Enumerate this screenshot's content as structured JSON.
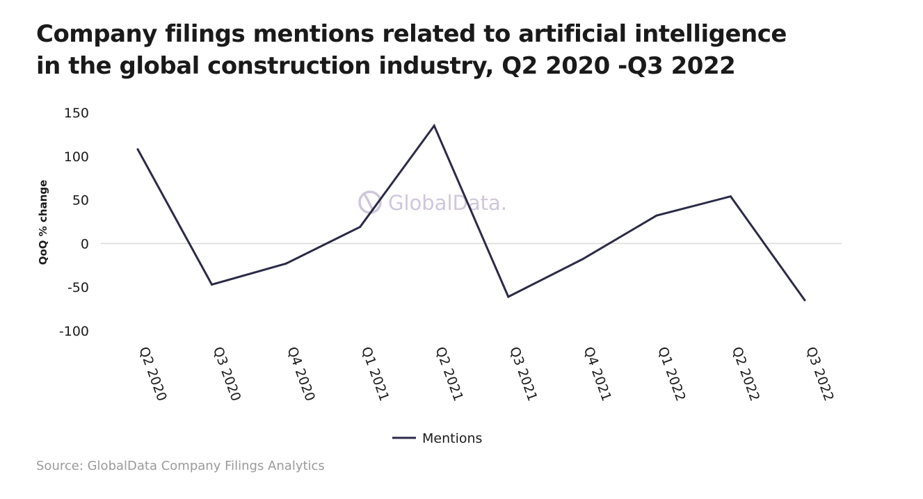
{
  "title_lines": [
    "Company filings mentions related to artificial intelligence",
    "in the global construction industry, Q2 2020 -Q3 2022"
  ],
  "source": "Source: GlobalData Company Filings Analytics",
  "watermark": "GlobalData.",
  "colors": {
    "line": "#2b2a48",
    "zero_line": "#d9d9d9",
    "watermark": "#cfc7dc",
    "text": "#1a1a1a"
  },
  "chart_data": {
    "type": "line",
    "title": "Company filings mentions related to artificial intelligence in the global construction industry, Q2 2020 -Q3 2022",
    "xlabel": "",
    "ylabel": "QoQ % change",
    "categories": [
      "Q2 2020",
      "Q3 2020",
      "Q4 2020",
      "Q1 2021",
      "Q2 2021",
      "Q3 2021",
      "Q4 2021",
      "Q1 2022",
      "Q2 2022",
      "Q3 2022"
    ],
    "series": [
      {
        "name": "Mentions",
        "values": [
          108,
          -47,
          -23,
          19,
          135,
          -61,
          -18,
          32,
          54,
          -65
        ]
      }
    ],
    "ylim": [
      -100,
      150
    ],
    "yticks": [
      150,
      100,
      50,
      0,
      -50,
      -100
    ],
    "ytick_labels": [
      "150",
      "100",
      "50",
      "0",
      "-50",
      "-100"
    ],
    "grid": false,
    "zero_line": true,
    "legend_position": "bottom-center"
  }
}
